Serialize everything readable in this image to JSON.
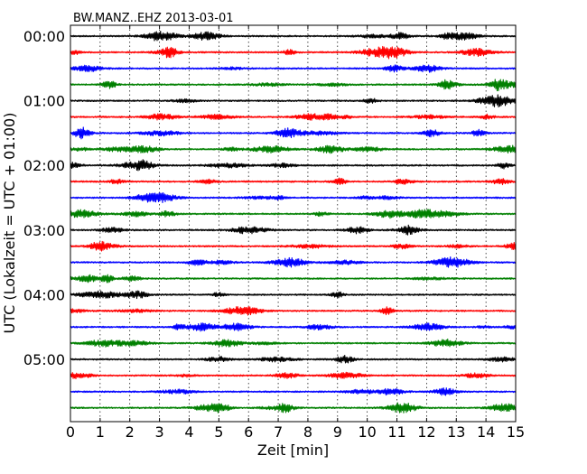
{
  "chart_data": {
    "type": "line",
    "title": "BW.MANZ..EHZ 2013-03-01",
    "xlabel": "Zeit  [min]",
    "ylabel": "UTC (Lokalzeit = UTC + 01:00)",
    "xlim": [
      0,
      15
    ],
    "x_ticks": [
      "0",
      "1",
      "2",
      "3",
      "4",
      "5",
      "6",
      "7",
      "8",
      "9",
      "10",
      "11",
      "12",
      "13",
      "14",
      "15"
    ],
    "y_ticks": [
      "00:00",
      "01:00",
      "02:00",
      "03:00",
      "04:00",
      "05:00"
    ],
    "trace_minutes": 15,
    "trace_count": 24,
    "trace_colors": [
      "#000000",
      "#ff0000",
      "#0000ff",
      "#008000"
    ],
    "grid": "vertical dotted lines at each minute"
  }
}
